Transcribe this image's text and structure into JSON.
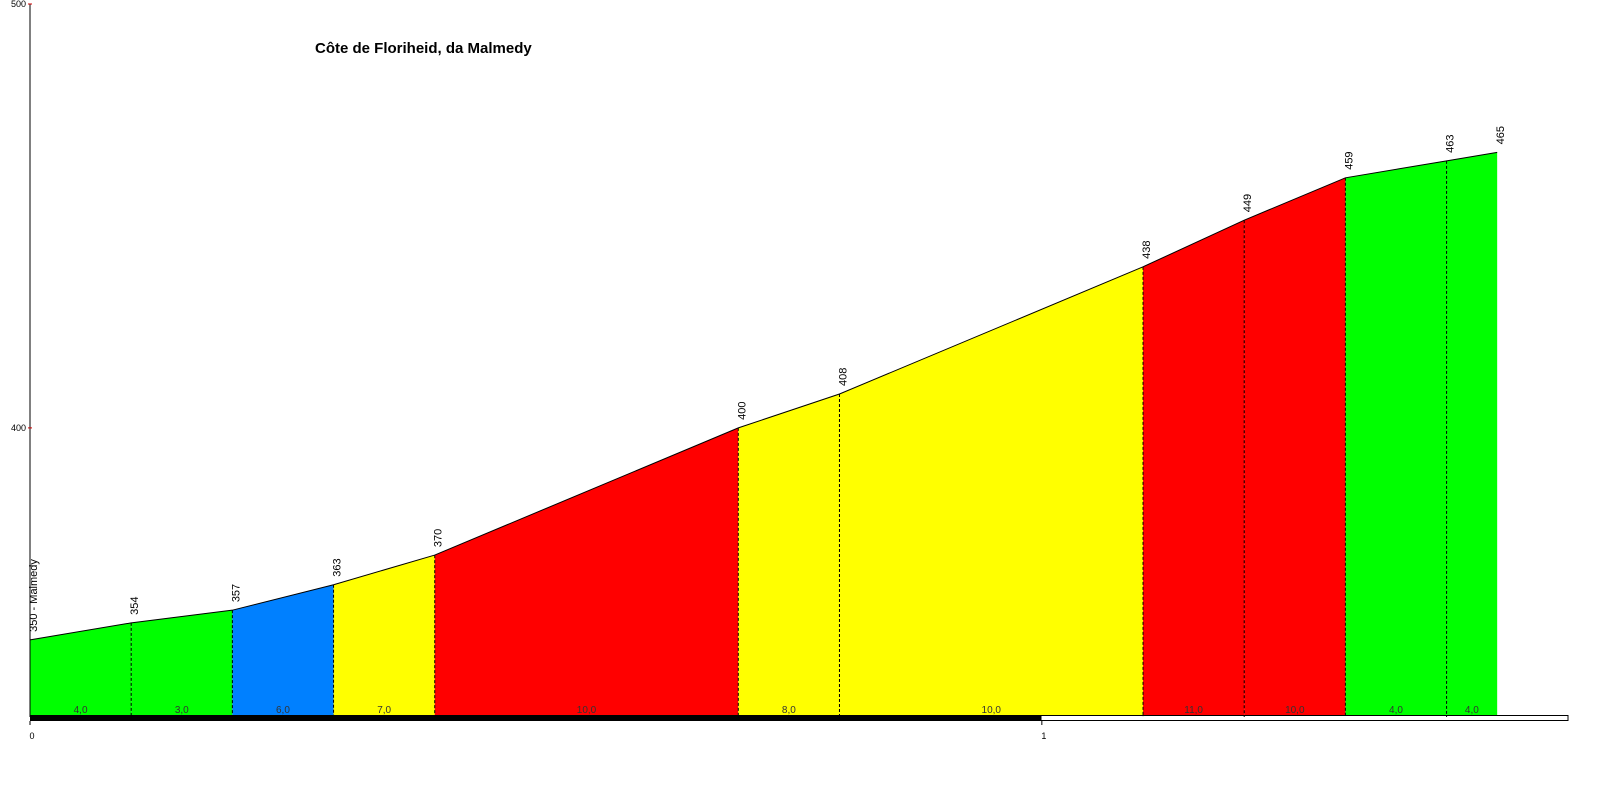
{
  "chart_data": {
    "type": "area",
    "title": "Côte de Floriheid, da Malmedy",
    "x": [
      0,
      0.1,
      0.2,
      0.3,
      0.4,
      0.7,
      0.8,
      1.1,
      1.2,
      1.3,
      1.4,
      1.45
    ],
    "values": [
      350,
      354,
      357,
      363,
      370,
      400,
      408,
      438,
      449,
      459,
      463,
      465
    ],
    "value_labels": [
      "350 - Malmedy",
      "354",
      "357",
      "363",
      "370",
      "400",
      "408",
      "438",
      "449",
      "459",
      "463",
      "465"
    ],
    "segments": {
      "values": [
        4,
        3,
        6,
        7,
        10,
        8,
        10,
        11,
        10,
        4,
        4
      ],
      "value_labels": [
        "4,0",
        "3,0",
        "6,0",
        "7,0",
        "10,0",
        "8,0",
        "10,0",
        "11,0",
        "10,0",
        "4,0",
        "4,0"
      ],
      "colors": [
        "#00ff00",
        "#00ff00",
        "#0080ff",
        "#ffff00",
        "#ff0000",
        "#ffff00",
        "#ffff00",
        "#ff0000",
        "#ff0000",
        "#00ff00",
        "#00ff00"
      ]
    },
    "xlim": [
      0,
      1.52
    ],
    "ylim": [
      331.8,
      500
    ],
    "xticks": [
      0,
      1
    ],
    "yticks": [
      400,
      500
    ]
  }
}
